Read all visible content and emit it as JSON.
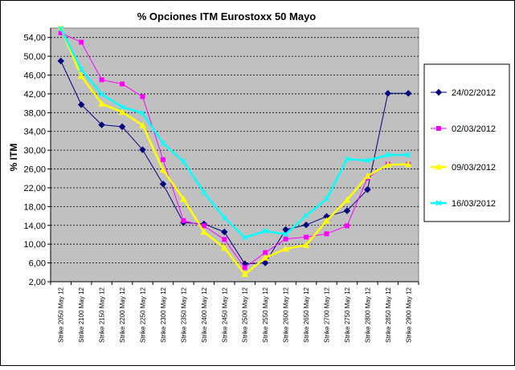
{
  "chart_data": {
    "type": "line",
    "title": "%  Opciones ITM Eurostoxx 50 Mayo",
    "xlabel": "",
    "ylabel": "% ITM",
    "ylim": [
      2,
      56
    ],
    "yticks": [
      "2,00",
      "6,00",
      "10,00",
      "14,00",
      "18,00",
      "22,00",
      "26,00",
      "30,00",
      "34,00",
      "38,00",
      "42,00",
      "46,00",
      "50,00",
      "54,00"
    ],
    "ytick_values": [
      2,
      6,
      10,
      14,
      18,
      22,
      26,
      30,
      34,
      38,
      42,
      46,
      50,
      54
    ],
    "categories": [
      "Strike 2050 May 12",
      "Strike 2100 May 12",
      "Strike 2150 May 12",
      "Strike 2200 May 12",
      "Strike 2250 May 12",
      "Strike 2300 May 12",
      "Strike 2350 May 12",
      "Strike 2400 May 12",
      "Strike 2450 May 12",
      "Strike 2500 May 12",
      "Strike 2550 May 12",
      "Strike 2600 May 12",
      "Strike 2650 May 12",
      "Strike 2700 May 12",
      "Strike 2750 May 12",
      "Strike 2800 May 12",
      "Strike 2850 May 12",
      "Strike 2900 May 12"
    ],
    "grid": true,
    "plot_background": "#c0c0c0",
    "legend_position": "right",
    "series": [
      {
        "name": "24/02/2012",
        "color": "#000080",
        "marker": "diamond",
        "values": [
          49.0,
          39.7,
          35.4,
          35.0,
          30.1,
          22.8,
          14.6,
          14.3,
          12.6,
          5.8,
          6.0,
          13.1,
          14.1,
          15.9,
          17.1,
          21.6,
          42.1,
          42.1
        ]
      },
      {
        "name": "02/03/2012",
        "color": "#ff00ff",
        "marker": "square",
        "values": [
          55.0,
          53.0,
          45.0,
          44.1,
          41.4,
          28.0,
          15.0,
          13.9,
          11.0,
          5.0,
          8.2,
          11.1,
          11.5,
          12.2,
          13.9,
          24.1,
          27.0,
          27.0
        ]
      },
      {
        "name": "09/03/2012",
        "color": "#ffff00",
        "marker": "triangle",
        "values": [
          56.0,
          45.8,
          39.9,
          38.1,
          35.3,
          25.8,
          19.6,
          12.6,
          9.2,
          3.6,
          7.1,
          9.0,
          9.8,
          15.0,
          19.4,
          24.5,
          26.9,
          27.0
        ]
      },
      {
        "name": "16/03/2012",
        "color": "#00ffff",
        "marker": "cross",
        "values": [
          55.9,
          47.2,
          41.9,
          39.2,
          37.9,
          31.5,
          27.6,
          21.0,
          15.6,
          11.4,
          12.8,
          12.1,
          16.1,
          19.6,
          28.1,
          27.8,
          29.0,
          29.0
        ]
      }
    ]
  }
}
